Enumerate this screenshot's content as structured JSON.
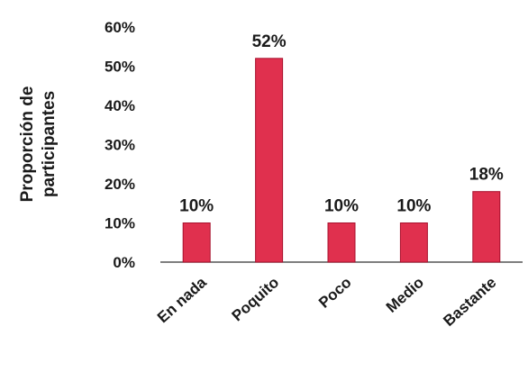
{
  "chart_data": {
    "type": "bar",
    "categories": [
      "En nada",
      "Poquito",
      "Poco",
      "Medio",
      "Bastante"
    ],
    "values": [
      10,
      52,
      10,
      10,
      18
    ],
    "data_labels": [
      "10%",
      "52%",
      "10%",
      "10%",
      "18%"
    ],
    "ylabel_lines": [
      "Proporción de",
      "participantes"
    ],
    "yticks": [
      "0%",
      "10%",
      "20%",
      "30%",
      "40%",
      "50%",
      "60%"
    ],
    "ylim": [
      0,
      60
    ],
    "grid": false,
    "bar_color": "#e0304e",
    "bar_edge_color": "#a8122e"
  }
}
